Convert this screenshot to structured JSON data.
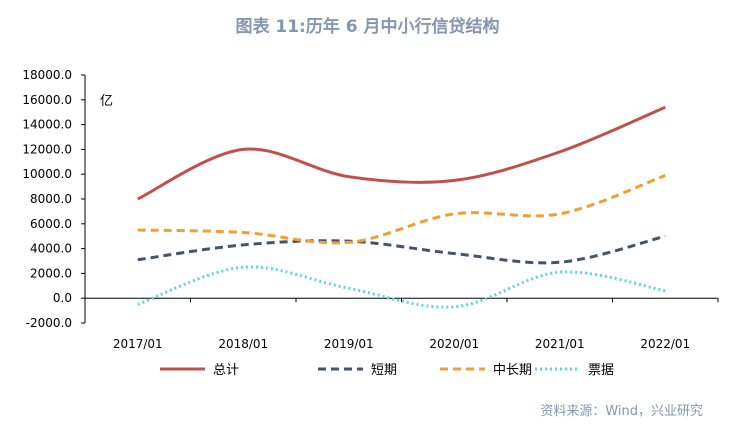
{
  "chart_data": {
    "type": "line",
    "title": "图表 11:历年 6 月中小行信贷结构",
    "unit_label": "亿",
    "categories": [
      "2017/01",
      "2018/01",
      "2019/01",
      "2020/01",
      "2021/01",
      "2022/01"
    ],
    "ylim": [
      -2000,
      18000
    ],
    "yticks": [
      -2000,
      0,
      2000,
      4000,
      6000,
      8000,
      10000,
      12000,
      14000,
      16000,
      18000
    ],
    "ytick_labels": [
      "-2000.0",
      "0.0",
      "2000.0",
      "4000.0",
      "6000.0",
      "8000.0",
      "10000.0",
      "12000.0",
      "14000.0",
      "16000.0",
      "18000.0"
    ],
    "grid": false,
    "legend_position": "bottom",
    "series": [
      {
        "name": "总计",
        "color": "#C0504D",
        "dash": "solid",
        "values": [
          8000,
          12000,
          9800,
          9500,
          11800,
          15400
        ]
      },
      {
        "name": "短期",
        "color": "#44546A",
        "dash": "dashed",
        "values": [
          3100,
          4300,
          4600,
          3600,
          2900,
          5000
        ]
      },
      {
        "name": "中长期",
        "color": "#F0A030",
        "dash": "dashed",
        "values": [
          5500,
          5300,
          4500,
          6800,
          6800,
          9900
        ]
      },
      {
        "name": "票据",
        "color": "#5CD6D6",
        "dash": "dotted",
        "values": [
          -500,
          2500,
          800,
          -700,
          2100,
          600
        ]
      }
    ]
  },
  "source": "资料来源：Wind，兴业研究"
}
